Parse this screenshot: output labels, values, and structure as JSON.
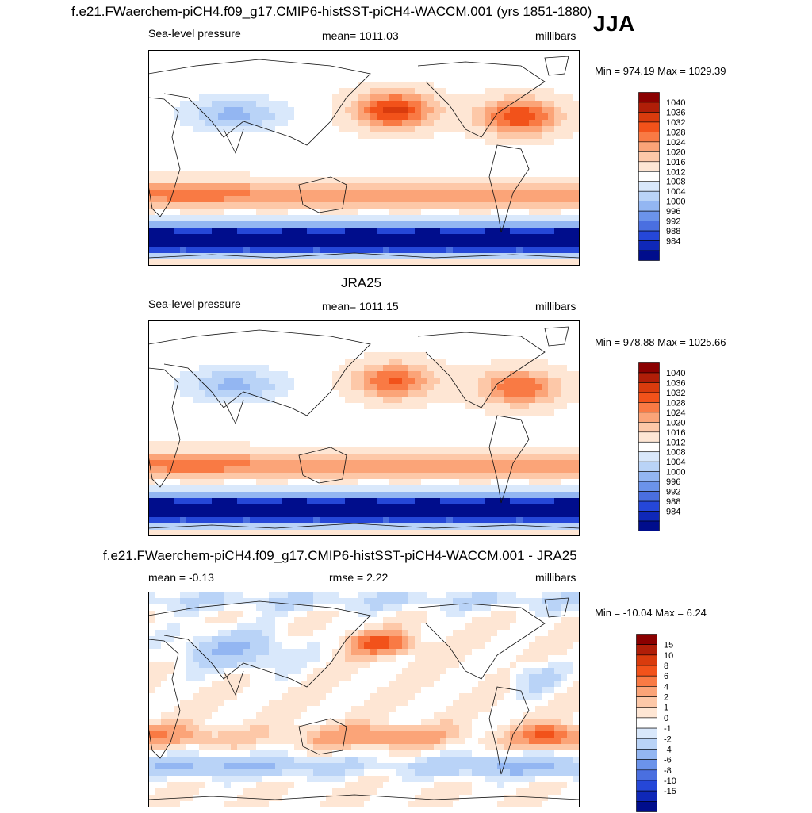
{
  "figure": {
    "season": "JJA",
    "panels": [
      {
        "id": "model",
        "title": "f.e21.FWaerchem-piCH4.f09_g17.CMIP6-histSST-piCH4-WACCM.001 (yrs 1851-1880)",
        "left_label": "Sea-level pressure",
        "center_label": "mean= 1011.03",
        "right_label": "millibars",
        "minmax": "Min = 974.19 Max = 1029.39",
        "kind": "abs"
      },
      {
        "id": "obs",
        "title": "JRA25",
        "left_label": "Sea-level pressure",
        "center_label": "mean= 1011.15",
        "right_label": "millibars",
        "minmax": "Min = 978.88 Max = 1025.66",
        "kind": "abs"
      },
      {
        "id": "diff",
        "title": "f.e21.FWaerchem-piCH4.f09_g17.CMIP6-histSST-piCH4-WACCM.001 - JRA25",
        "left_label": "mean =  -0.13",
        "center_label": "rmse =   2.22",
        "right_label": "millibars",
        "minmax": "Min = -10.04 Max =   6.24",
        "kind": "diff"
      }
    ],
    "colorbar_abs": {
      "levels": [
        "1040",
        "1036",
        "1032",
        "1028",
        "1024",
        "1020",
        "1016",
        "1012",
        "1008",
        "1004",
        "1000",
        "996",
        "992",
        "988",
        "984"
      ],
      "colors": [
        "#8b0000",
        "#b01e08",
        "#d93b0d",
        "#f2521a",
        "#f97a44",
        "#fba478",
        "#fdc8a8",
        "#fee6d4",
        "#ffffff",
        "#d9e8fb",
        "#b9d3f7",
        "#93b6f2",
        "#6b93ea",
        "#4a6fe0",
        "#2547d8",
        "#0f28b8",
        "#000d8c"
      ]
    },
    "colorbar_diff": {
      "levels": [
        "15",
        "10",
        "8",
        "6",
        "4",
        "2",
        "1",
        "0",
        "-1",
        "-2",
        "-4",
        "-6",
        "-8",
        "-10",
        "-15"
      ],
      "colors": [
        "#8b0000",
        "#b01e08",
        "#d93b0d",
        "#f2521a",
        "#f97a44",
        "#fba478",
        "#fdc8a8",
        "#fee6d4",
        "#ffffff",
        "#d9e8fb",
        "#b9d3f7",
        "#93b6f2",
        "#6b93ea",
        "#4a6fe0",
        "#2547d8",
        "#0f28b8",
        "#000d8c"
      ]
    }
  }
}
